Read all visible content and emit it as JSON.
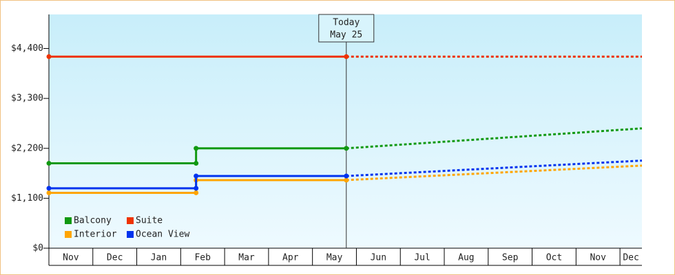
{
  "chart_data": {
    "type": "line",
    "categories": [
      "Nov",
      "Dec",
      "Jan",
      "Feb",
      "Mar",
      "Apr",
      "May",
      "Jun",
      "Jul",
      "Aug",
      "Sep",
      "Oct",
      "Nov",
      "Dec"
    ],
    "xlim": [
      0,
      13.5
    ],
    "ylim": [
      0,
      5150
    ],
    "yticks": [
      {
        "value": 0,
        "label": "$0"
      },
      {
        "value": 1100,
        "label": "$1,100"
      },
      {
        "value": 2200,
        "label": "$2,200"
      },
      {
        "value": 3300,
        "label": "$3,300"
      },
      {
        "value": 4400,
        "label": "$4,400"
      }
    ],
    "annotation": {
      "x": 6.77,
      "label": [
        "Today",
        "May 25"
      ]
    },
    "legend": "lower left",
    "series": [
      {
        "name": "Balcony",
        "color": "#119911",
        "x": [
          0,
          3.35,
          3.35,
          6.77
        ],
        "values": [
          1870,
          1870,
          2200,
          2200
        ],
        "forecast_x": [
          6.77,
          13.5
        ],
        "forecast_values": [
          2200,
          2640
        ]
      },
      {
        "name": "Suite",
        "color": "#ee3300",
        "x": [
          0,
          6.77
        ],
        "values": [
          4220,
          4220
        ],
        "forecast_x": [
          6.77,
          13.5
        ],
        "forecast_values": [
          4220,
          4220
        ]
      },
      {
        "name": "Interior",
        "color": "#ffa500",
        "x": [
          0,
          3.35,
          3.35,
          6.77
        ],
        "values": [
          1220,
          1220,
          1500,
          1500
        ],
        "forecast_x": [
          6.77,
          13.5
        ],
        "forecast_values": [
          1500,
          1820
        ]
      },
      {
        "name": "Ocean View",
        "color": "#0033ee",
        "x": [
          0,
          3.35,
          3.35,
          6.77
        ],
        "values": [
          1320,
          1320,
          1590,
          1590
        ],
        "forecast_x": [
          6.77,
          13.5
        ],
        "forecast_values": [
          1590,
          1930
        ]
      }
    ]
  }
}
